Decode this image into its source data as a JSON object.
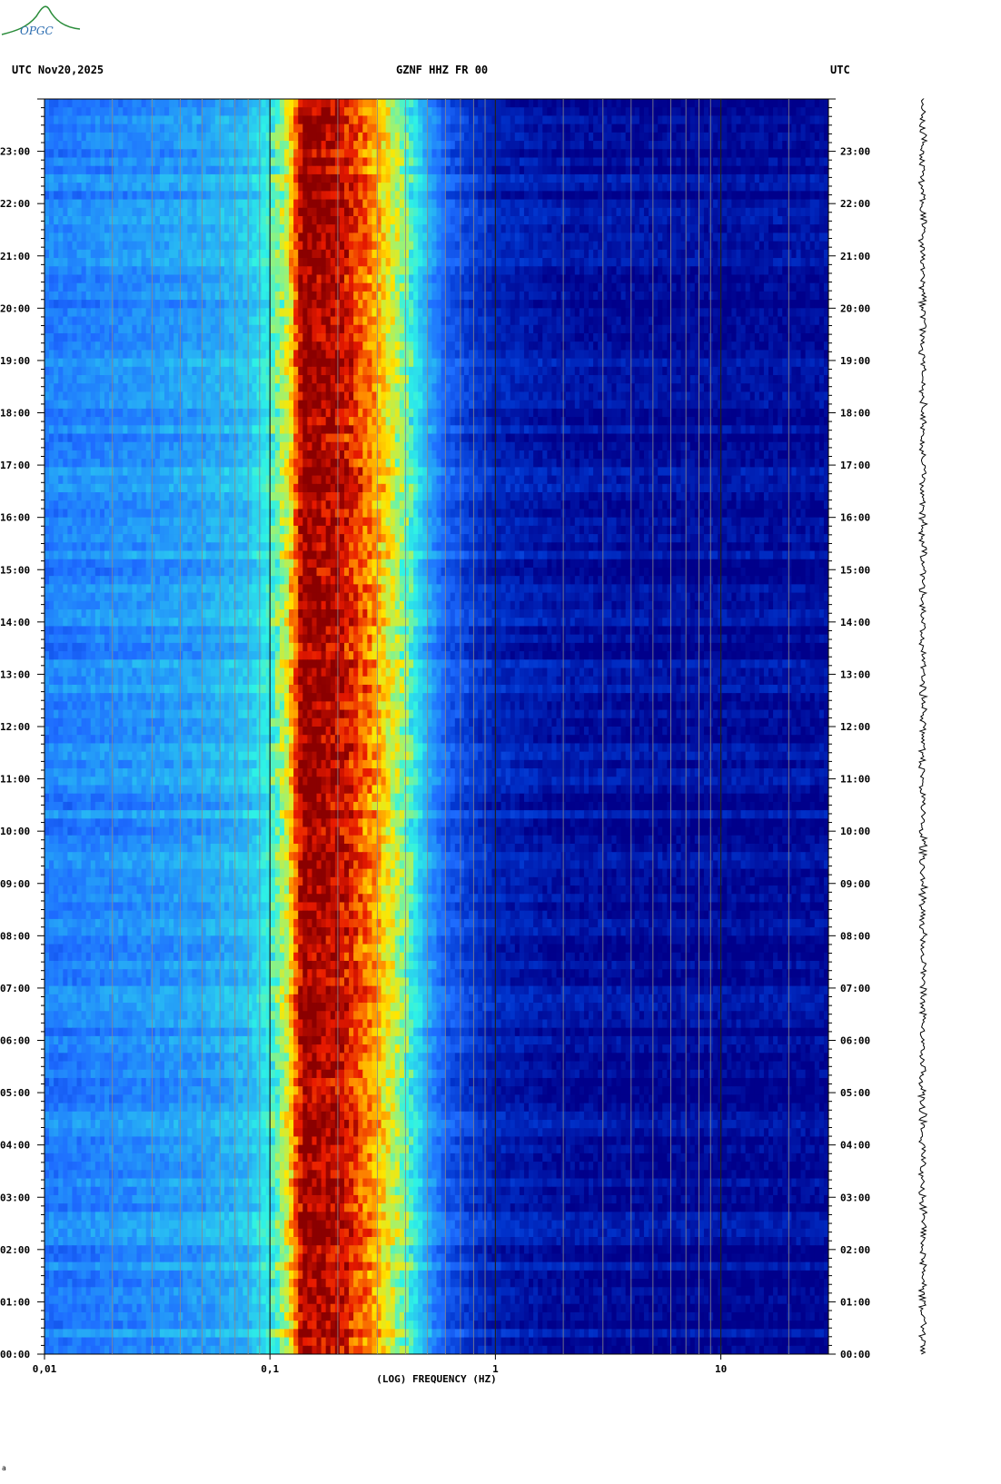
{
  "header": {
    "left": "UTC  Nov20,2025",
    "center": "GZNF HHZ FR 00",
    "right": "UTC",
    "logo": "OPGC"
  },
  "footer": {
    "mark": "a"
  },
  "colors": {
    "background": "#00008b",
    "gradient": [
      "#00008b",
      "#0033cc",
      "#1e6cff",
      "#27b2f5",
      "#2ef2e6",
      "#9cf274",
      "#ffe600",
      "#ff8a00",
      "#e81a00",
      "#8b0000"
    ]
  },
  "chart_data": {
    "type": "heatmap",
    "title": "GZNF HHZ FR 00",
    "xlabel": "(LOG) FREQUENCY (HZ)",
    "ylabel": "UTC",
    "x_scale": "log",
    "xlim": [
      0.01,
      30
    ],
    "x_ticks": [
      {
        "value": 0.01,
        "label": "0,01"
      },
      {
        "value": 0.1,
        "label": "0,1"
      },
      {
        "value": 1,
        "label": "1"
      },
      {
        "value": 10,
        "label": "10"
      }
    ],
    "ylim": [
      0,
      24
    ],
    "y_ticks": [
      {
        "value": 0,
        "label": "00:00"
      },
      {
        "value": 1,
        "label": "01:00"
      },
      {
        "value": 2,
        "label": "02:00"
      },
      {
        "value": 3,
        "label": "03:00"
      },
      {
        "value": 4,
        "label": "04:00"
      },
      {
        "value": 5,
        "label": "05:00"
      },
      {
        "value": 6,
        "label": "06:00"
      },
      {
        "value": 7,
        "label": "07:00"
      },
      {
        "value": 8,
        "label": "08:00"
      },
      {
        "value": 9,
        "label": "09:00"
      },
      {
        "value": 10,
        "label": "10:00"
      },
      {
        "value": 11,
        "label": "11:00"
      },
      {
        "value": 12,
        "label": "12:00"
      },
      {
        "value": 13,
        "label": "13:00"
      },
      {
        "value": 14,
        "label": "14:00"
      },
      {
        "value": 15,
        "label": "15:00"
      },
      {
        "value": 16,
        "label": "16:00"
      },
      {
        "value": 17,
        "label": "17:00"
      },
      {
        "value": 18,
        "label": "18:00"
      },
      {
        "value": 19,
        "label": "19:00"
      },
      {
        "value": 20,
        "label": "20:00"
      },
      {
        "value": 21,
        "label": "21:00"
      },
      {
        "value": 22,
        "label": "22:00"
      },
      {
        "value": 23,
        "label": "23:00"
      }
    ],
    "y_minor_per_hour": 6,
    "grid": "vertical log lines",
    "spectrum": {
      "freq_hz": [
        0.01,
        0.025,
        0.05,
        0.08,
        0.1,
        0.12,
        0.14,
        0.2,
        0.26,
        0.32,
        0.4,
        0.5,
        0.6,
        0.8,
        1.0,
        2.0,
        5.0,
        30.0
      ],
      "level": [
        0.25,
        0.28,
        0.31,
        0.36,
        0.45,
        0.62,
        1.0,
        0.95,
        0.82,
        0.68,
        0.52,
        0.32,
        0.2,
        0.12,
        0.08,
        0.04,
        0.03,
        0.03
      ]
    }
  }
}
